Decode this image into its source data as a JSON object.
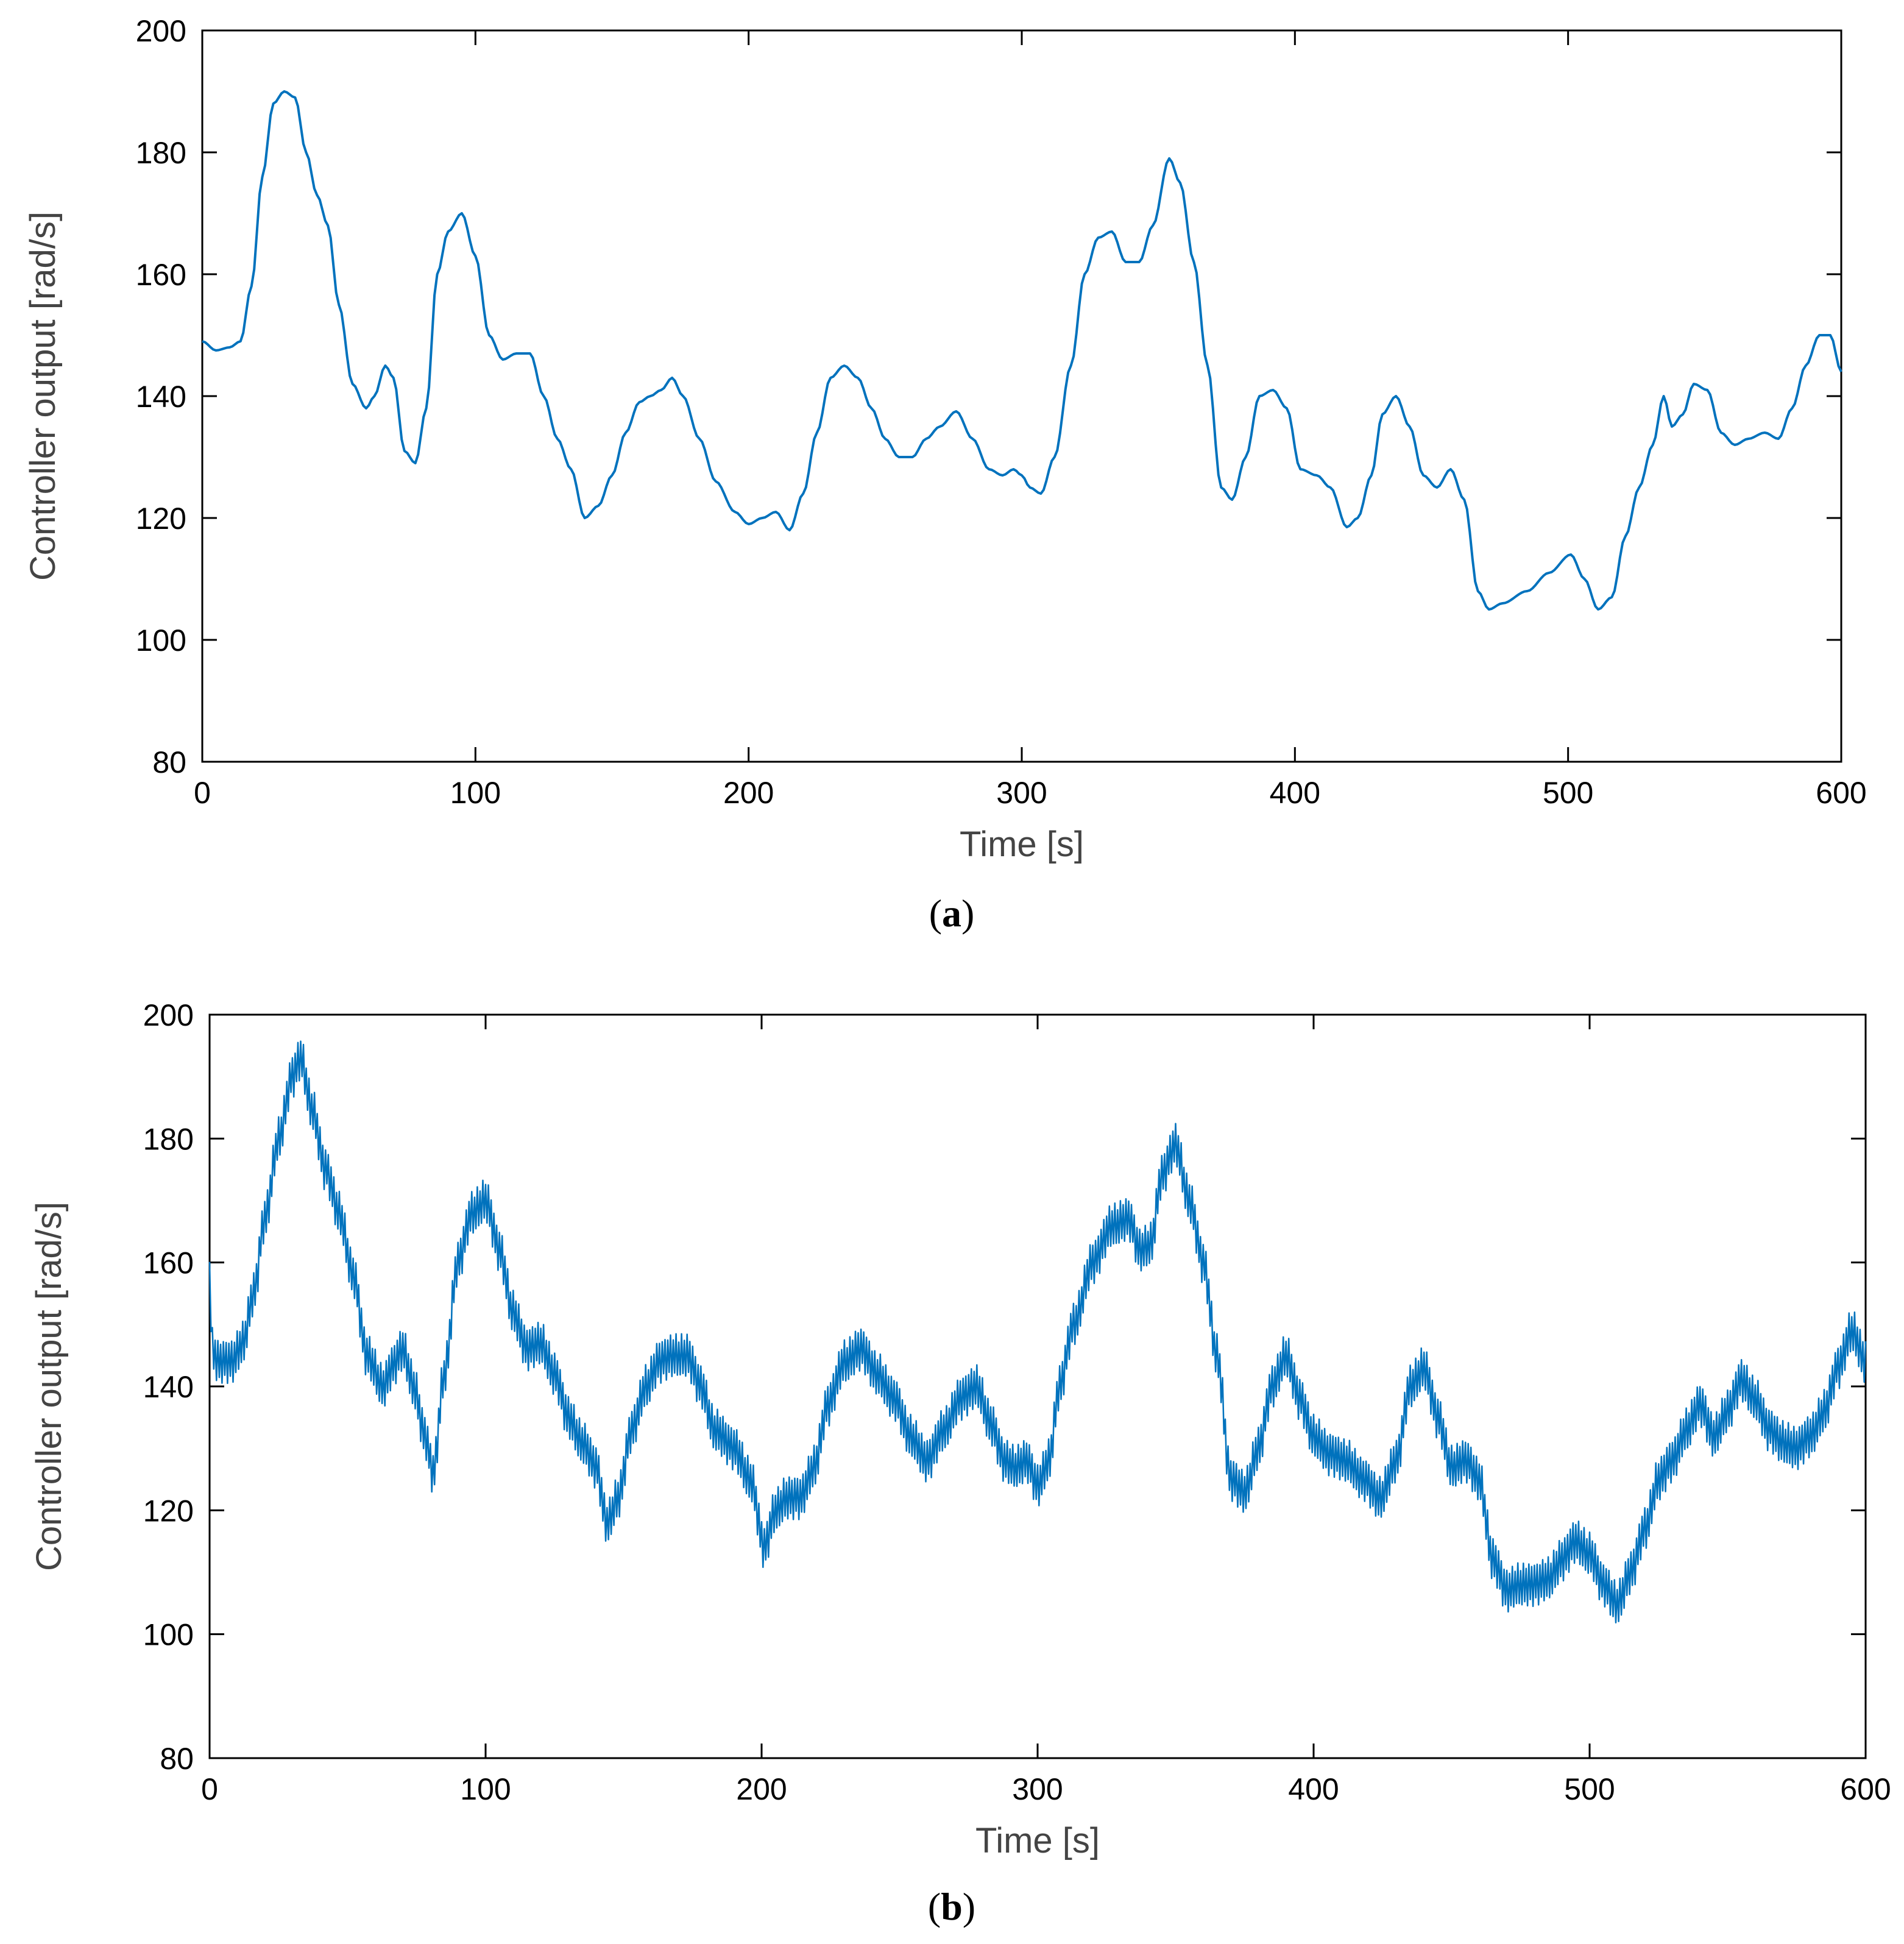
{
  "colors": {
    "series": "#0072BD",
    "axis": "#000000",
    "axis_title": "#444444"
  },
  "chart_data": [
    {
      "type": "line",
      "caption": {
        "open": "(",
        "letter": "a",
        "close": ")"
      },
      "xlabel": "Time [s]",
      "ylabel": "Controller output [rad/s]",
      "xlim": [
        0,
        600
      ],
      "ylim": [
        80,
        200
      ],
      "xticks": [
        0,
        100,
        200,
        300,
        400,
        500,
        600
      ],
      "yticks": [
        80,
        100,
        120,
        140,
        160,
        180,
        200
      ],
      "grid": false,
      "noise": 0,
      "series": [
        {
          "name": "Controller output",
          "x": [
            0,
            5,
            10,
            14,
            18,
            22,
            26,
            30,
            34,
            38,
            42,
            46,
            50,
            55,
            60,
            63,
            67,
            70,
            74,
            78,
            82,
            86,
            90,
            95,
            100,
            105,
            110,
            115,
            120,
            125,
            130,
            135,
            140,
            145,
            150,
            155,
            160,
            164,
            168,
            172,
            176,
            182,
            188,
            195,
            200,
            205,
            210,
            215,
            220,
            225,
            230,
            235,
            240,
            245,
            250,
            255,
            260,
            265,
            270,
            276,
            282,
            288,
            293,
            297,
            300,
            303,
            307,
            312,
            318,
            323,
            328,
            333,
            338,
            343,
            348,
            354,
            358,
            363,
            368,
            373,
            377,
            382,
            387,
            392,
            397,
            402,
            408,
            413,
            419,
            423,
            428,
            432,
            437,
            442,
            447,
            452,
            457,
            462,
            467,
            471,
            476,
            485,
            493,
            501,
            506,
            511,
            516,
            521,
            526,
            531,
            535,
            538,
            542,
            546,
            551,
            556,
            561,
            566,
            572,
            577,
            582,
            587,
            592,
            596,
            600
          ],
          "y": [
            149,
            147.5,
            148,
            149,
            158,
            176,
            188,
            190,
            189,
            180,
            173,
            168,
            155,
            142,
            138,
            140,
            145,
            143,
            131,
            129,
            138,
            160,
            167,
            170,
            163,
            150,
            146,
            147,
            147,
            140,
            133,
            128,
            120,
            122,
            127,
            134,
            139,
            140,
            141,
            143,
            140,
            133,
            126,
            121,
            119,
            120,
            121,
            118,
            124,
            134,
            143,
            145,
            143,
            138,
            133,
            130,
            130,
            133,
            135,
            137.5,
            133,
            128,
            127,
            128,
            127,
            125,
            124,
            130,
            145,
            160,
            166,
            167,
            162,
            162,
            168,
            179,
            175,
            162,
            145,
            125,
            123,
            130,
            140,
            141,
            138,
            128,
            127,
            125,
            118.5,
            120,
            127,
            137,
            140,
            135,
            127,
            125,
            128,
            123,
            108,
            105,
            106,
            108,
            111,
            114,
            110,
            105,
            107,
            117,
            125,
            132,
            140,
            135,
            137,
            142,
            141,
            134,
            132,
            133,
            134,
            133,
            138,
            145,
            150,
            150,
            144
          ]
        }
      ]
    },
    {
      "type": "line",
      "caption": {
        "open": "(",
        "letter": "b",
        "close": ")"
      },
      "xlabel": "Time [s]",
      "ylabel": "Controller output [rad/s]",
      "xlim": [
        0,
        600
      ],
      "ylim": [
        80,
        200
      ],
      "xticks": [
        0,
        100,
        200,
        300,
        400,
        500,
        600
      ],
      "yticks": [
        80,
        100,
        120,
        140,
        160,
        180,
        200
      ],
      "grid": false,
      "noise": 3.5,
      "series": [
        {
          "name": "Controller output",
          "x": [
            0,
            1,
            3,
            8,
            12,
            16,
            20,
            25,
            30,
            33,
            37,
            42,
            47,
            52,
            57,
            63,
            66,
            70,
            74,
            78,
            81,
            85,
            90,
            95,
            100,
            105,
            110,
            115,
            120,
            125,
            130,
            135,
            140,
            144,
            148,
            153,
            158,
            163,
            168,
            173,
            178,
            183,
            190,
            196,
            201,
            205,
            209,
            214,
            219,
            224,
            230,
            236,
            242,
            248,
            254,
            260,
            266,
            272,
            278,
            283,
            288,
            292,
            296,
            300,
            304,
            308,
            313,
            320,
            327,
            333,
            337,
            341,
            345,
            350,
            355,
            360,
            365,
            370,
            375,
            380,
            385,
            390,
            395,
            400,
            406,
            412,
            418,
            424,
            430,
            435,
            440,
            445,
            450,
            455,
            460,
            465,
            470,
            474,
            480,
            485,
            490,
            495,
            500,
            505,
            510,
            515,
            520,
            525,
            530,
            535,
            540,
            545,
            550,
            555,
            560,
            565,
            570,
            575,
            580,
            585,
            590,
            595,
            600
          ],
          "y": [
            158,
            146,
            144,
            144,
            147,
            155,
            167,
            180,
            190,
            193,
            185,
            175,
            168,
            158,
            145,
            140,
            143,
            146,
            140,
            132,
            126,
            142,
            160,
            168,
            170,
            162,
            152,
            146,
            147,
            142,
            135,
            131,
            127,
            118,
            122,
            133,
            140,
            144,
            145,
            145,
            140,
            133,
            130,
            125,
            114,
            120,
            122,
            122,
            127,
            137,
            144,
            146,
            142,
            138,
            132,
            128,
            133,
            138,
            140,
            134,
            128,
            127,
            128,
            124,
            128,
            140,
            150,
            160,
            166,
            167,
            162,
            163,
            174,
            179,
            170,
            160,
            145,
            125,
            123,
            130,
            140,
            145,
            138,
            132,
            129,
            128,
            125,
            122,
            128,
            140,
            143,
            135,
            127,
            128,
            125,
            112,
            107,
            108,
            108,
            109,
            112,
            115,
            113,
            108,
            105,
            110,
            117,
            125,
            128,
            133,
            137,
            132,
            136,
            141,
            138,
            133,
            131,
            130,
            132,
            136,
            143,
            149,
            144
          ]
        }
      ]
    }
  ]
}
